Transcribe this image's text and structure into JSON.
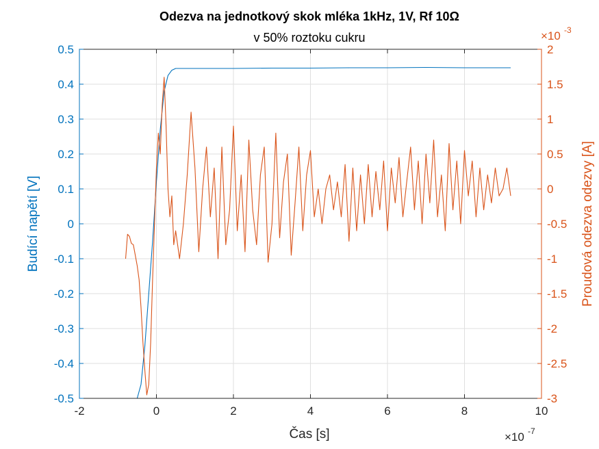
{
  "chart_data": {
    "type": "line",
    "title": "Odezva na jednotkový skok mléka 1kHz, 1V, Rf 10Ω",
    "subtitle": "v 50% roztoku cukru",
    "xlabel": "Čas [s]",
    "x_exponent": {
      "base": "×10",
      "power": "-7"
    },
    "xlim": [
      -2,
      10
    ],
    "x_ticks": [
      "-2",
      "0",
      "2",
      "4",
      "6",
      "8",
      "10"
    ],
    "y_left": {
      "label": "Budící napětí [V]",
      "ylim": [
        -0.5,
        0.5
      ],
      "ticks": [
        "-0.5",
        "-0.4",
        "-0.3",
        "-0.2",
        "-0.1",
        "0",
        "0.1",
        "0.2",
        "0.3",
        "0.4",
        "0.5"
      ],
      "color": "#0072BD"
    },
    "y_right": {
      "label": "Proudová odezva odezvy [A]",
      "ylim": [
        -3,
        2
      ],
      "ticks": [
        "-3",
        "-2.5",
        "-2",
        "-1.5",
        "-1",
        "-0.5",
        "0",
        "0.5",
        "1",
        "1.5",
        "2"
      ],
      "exponent": {
        "base": "×10",
        "power": "-3"
      },
      "color": "#D95319"
    },
    "grid": true,
    "series": [
      {
        "axis": "left",
        "color": "#0072BD",
        "x": [
          -0.8,
          -0.6,
          -0.5,
          -0.4,
          -0.3,
          -0.2,
          -0.1,
          0.0,
          0.1,
          0.2,
          0.3,
          0.4,
          0.5,
          1.0,
          1.5,
          2.0,
          3.0,
          4.0,
          5.0,
          6.0,
          7.0,
          8.0,
          9.2
        ],
        "y": [
          -0.5,
          -0.5,
          -0.5,
          -0.46,
          -0.35,
          -0.2,
          -0.05,
          0.12,
          0.27,
          0.38,
          0.425,
          0.44,
          0.445,
          0.445,
          0.445,
          0.445,
          0.446,
          0.446,
          0.447,
          0.447,
          0.448,
          0.447,
          0.447
        ]
      },
      {
        "axis": "right",
        "color": "#D95319",
        "x": [
          -0.8,
          -0.75,
          -0.7,
          -0.65,
          -0.6,
          -0.55,
          -0.5,
          -0.45,
          -0.4,
          -0.35,
          -0.3,
          -0.25,
          -0.2,
          -0.15,
          -0.1,
          -0.05,
          0.0,
          0.05,
          0.1,
          0.15,
          0.2,
          0.25,
          0.3,
          0.35,
          0.4,
          0.45,
          0.5,
          0.6,
          0.7,
          0.8,
          0.9,
          1.0,
          1.1,
          1.2,
          1.3,
          1.4,
          1.5,
          1.6,
          1.7,
          1.8,
          1.9,
          2.0,
          2.1,
          2.2,
          2.3,
          2.4,
          2.5,
          2.6,
          2.7,
          2.8,
          2.9,
          3.0,
          3.1,
          3.2,
          3.3,
          3.4,
          3.5,
          3.6,
          3.7,
          3.8,
          3.9,
          4.0,
          4.1,
          4.2,
          4.3,
          4.4,
          4.5,
          4.6,
          4.7,
          4.8,
          4.9,
          5.0,
          5.1,
          5.2,
          5.3,
          5.4,
          5.5,
          5.6,
          5.7,
          5.8,
          5.9,
          6.0,
          6.1,
          6.2,
          6.3,
          6.4,
          6.5,
          6.6,
          6.7,
          6.8,
          6.9,
          7.0,
          7.1,
          7.2,
          7.3,
          7.4,
          7.5,
          7.6,
          7.7,
          7.8,
          7.9,
          8.0,
          8.1,
          8.2,
          8.3,
          8.4,
          8.5,
          8.6,
          8.7,
          8.8,
          8.9,
          9.0,
          9.1,
          9.2
        ],
        "y": [
          -1.0,
          -0.65,
          -0.68,
          -0.78,
          -0.8,
          -0.95,
          -1.1,
          -1.3,
          -1.7,
          -2.2,
          -2.6,
          -2.95,
          -2.8,
          -2.2,
          -1.3,
          -0.5,
          0.3,
          0.8,
          0.5,
          1.2,
          1.6,
          0.9,
          0.0,
          -0.4,
          -0.1,
          -0.8,
          -0.6,
          -1.0,
          -0.5,
          0.2,
          1.1,
          0.3,
          -0.9,
          0.0,
          0.6,
          -0.4,
          0.3,
          -1.0,
          0.6,
          -0.8,
          -0.3,
          0.9,
          -0.6,
          0.2,
          -0.9,
          0.7,
          -0.3,
          -0.8,
          0.2,
          0.6,
          -1.05,
          -0.5,
          0.8,
          -0.7,
          0.1,
          0.5,
          -0.95,
          -0.2,
          0.6,
          -0.6,
          0.2,
          0.55,
          -0.4,
          0.0,
          -0.5,
          0.0,
          0.2,
          -0.3,
          0.1,
          -0.4,
          0.35,
          -0.75,
          0.3,
          -0.6,
          0.2,
          -0.5,
          0.35,
          -0.4,
          0.25,
          -0.3,
          0.4,
          -0.6,
          0.3,
          -0.2,
          0.45,
          -0.4,
          0.1,
          0.6,
          -0.3,
          0.4,
          -0.5,
          0.5,
          -0.2,
          0.7,
          -0.4,
          0.2,
          -0.6,
          0.65,
          -0.3,
          0.4,
          -0.5,
          0.55,
          -0.1,
          0.4,
          -0.4,
          0.3,
          -0.3,
          0.2,
          -0.2,
          0.3,
          -0.1,
          0.0,
          0.3,
          -0.1
        ]
      }
    ]
  }
}
